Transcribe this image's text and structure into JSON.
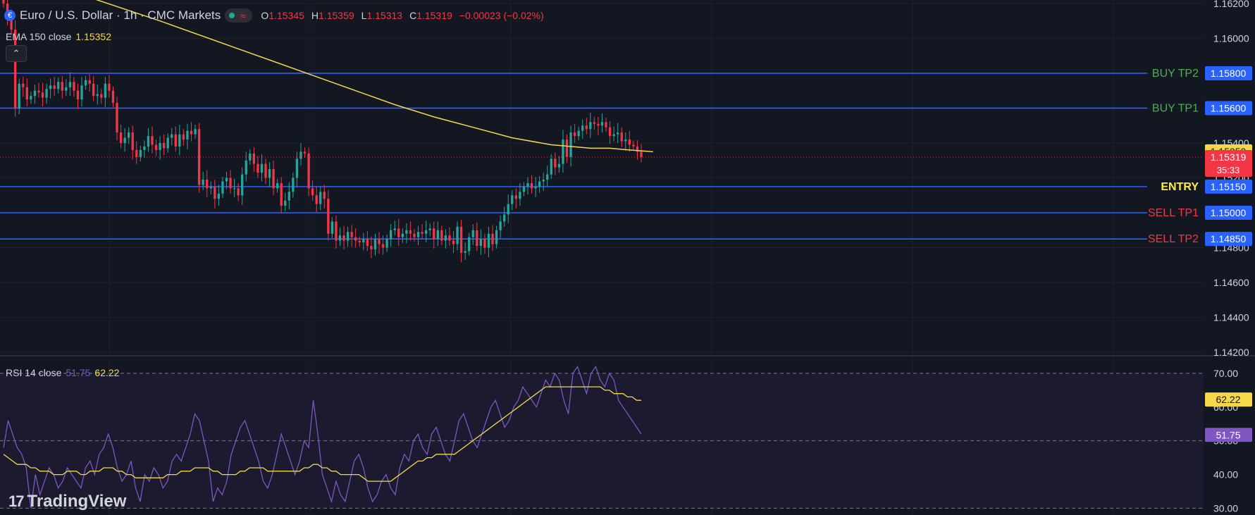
{
  "header": {
    "symbol_icon": "euro-dollar-flag-icon",
    "title": "Euro / U.S. Dollar · 1h · CMC Markets",
    "status_icon": "market-open-dot-icon",
    "wave_icon": "≈",
    "ohlc": {
      "o_label": "O",
      "o": "1.15345",
      "h_label": "H",
      "h": "1.15359",
      "l_label": "L",
      "l": "1.15313",
      "c_label": "C",
      "c": "1.15319",
      "change": "−0.00023 (−0.02%)"
    }
  },
  "ema_legend": {
    "label": "EMA 150 close",
    "value": "1.15352"
  },
  "collapse_button": {
    "icon": "chevron-up-icon",
    "glyph": "⌃"
  },
  "rsi_legend": {
    "label": "RSI 14 close",
    "rsi": "51.75",
    "ma": "62.22"
  },
  "brand": {
    "name": "TradingView",
    "mark": "17"
  },
  "colors": {
    "background": "#131722",
    "up": "#26a69a",
    "down": "#f23645",
    "ema": "#f7d74a",
    "level_line": "#2962ff",
    "rsi": "#7e57c2",
    "rsi_ma": "#f7d74a",
    "buy_text": "#4caf50",
    "entry_text": "#ffeb3b",
    "sell_text": "#f23645"
  },
  "chart_data": [
    {
      "type": "candlestick",
      "title": "Euro / U.S. Dollar · 1h · CMC Markets",
      "ylim": [
        1.1418,
        1.1622
      ],
      "y_ticks": [
        "1.16200",
        "1.16000",
        "1.15800",
        "1.15600",
        "1.15400",
        "1.15200",
        "1.15000",
        "1.14800",
        "1.14600",
        "1.14400",
        "1.14200"
      ],
      "grid": true,
      "close_series": [
        1.162,
        1.1612,
        1.1605,
        1.156,
        1.1574,
        1.1572,
        1.1565,
        1.1567,
        1.157,
        1.1569,
        1.1566,
        1.1571,
        1.1573,
        1.1571,
        1.1575,
        1.157,
        1.1572,
        1.1575,
        1.157,
        1.1565,
        1.1573,
        1.1576,
        1.1574,
        1.1567,
        1.1568,
        1.1566,
        1.1574,
        1.157,
        1.1563,
        1.1546,
        1.154,
        1.1543,
        1.1546,
        1.1536,
        1.1532,
        1.1536,
        1.1538,
        1.1544,
        1.1539,
        1.1536,
        1.154,
        1.1537,
        1.1543,
        1.1545,
        1.1538,
        1.1545,
        1.1542,
        1.1547,
        1.1545,
        1.1548,
        1.1516,
        1.1519,
        1.1514,
        1.1515,
        1.1508,
        1.1511,
        1.1518,
        1.152,
        1.1514,
        1.1514,
        1.151,
        1.1522,
        1.153,
        1.1534,
        1.1528,
        1.1523,
        1.1528,
        1.152,
        1.1525,
        1.1514,
        1.1517,
        1.1504,
        1.1507,
        1.1512,
        1.152,
        1.1531,
        1.1535,
        1.1534,
        1.1514,
        1.151,
        1.1505,
        1.1512,
        1.1508,
        1.1488,
        1.1495,
        1.1484,
        1.1487,
        1.1484,
        1.1489,
        1.1486,
        1.1484,
        1.1483,
        1.1485,
        1.1481,
        1.1479,
        1.1485,
        1.1482,
        1.148,
        1.1485,
        1.149,
        1.1491,
        1.1486,
        1.1488,
        1.149,
        1.1488,
        1.1486,
        1.1489,
        1.1488,
        1.149,
        1.1491,
        1.1485,
        1.149,
        1.1484,
        1.1487,
        1.1484,
        1.1482,
        1.1492,
        1.1477,
        1.1478,
        1.1486,
        1.149,
        1.1481,
        1.1485,
        1.148,
        1.1488,
        1.1482,
        1.149,
        1.1495,
        1.1499,
        1.1505,
        1.151,
        1.1508,
        1.1512,
        1.1515,
        1.1517,
        1.1514,
        1.1515,
        1.1518,
        1.1519,
        1.1522,
        1.1531,
        1.1526,
        1.1528,
        1.1542,
        1.1532,
        1.1546,
        1.1544,
        1.1547,
        1.155,
        1.1548,
        1.1552,
        1.1551,
        1.155,
        1.1552,
        1.1549,
        1.1544,
        1.1545,
        1.1546,
        1.1541,
        1.1542,
        1.1539,
        1.1538,
        1.1535,
        1.1532
      ],
      "ema_150": {
        "label": "EMA 150 close",
        "last": 1.15352,
        "points": [
          [
            0,
            1.1638
          ],
          [
            20,
            1.1625
          ],
          [
            40,
            1.161
          ],
          [
            60,
            1.1594
          ],
          [
            80,
            1.1578
          ],
          [
            100,
            1.1562
          ],
          [
            110,
            1.1555
          ],
          [
            120,
            1.1549
          ],
          [
            130,
            1.1543
          ],
          [
            140,
            1.1539
          ],
          [
            145,
            1.1538
          ],
          [
            150,
            1.1537
          ],
          [
            155,
            1.1537
          ],
          [
            160,
            1.1536
          ],
          [
            166,
            1.1535
          ]
        ]
      },
      "price_lines": [
        {
          "label": "BUY TP2",
          "value": 1.158,
          "price": "1.15800",
          "kind": "buy"
        },
        {
          "label": "BUY TP1",
          "value": 1.156,
          "price": "1.15600",
          "kind": "buy"
        },
        {
          "label": "ENTRY",
          "value": 1.1515,
          "price": "1.15150",
          "kind": "entry"
        },
        {
          "label": "SELL TP1",
          "value": 1.15,
          "price": "1.15000",
          "kind": "sell"
        },
        {
          "label": "SELL TP2",
          "value": 1.1485,
          "price": "1.14850",
          "kind": "sell"
        }
      ],
      "last_price": {
        "value": 1.15319,
        "price": "1.15319",
        "countdown": "35:33"
      },
      "ema_badge": {
        "value": 1.15352,
        "price": "1.15352"
      }
    },
    {
      "type": "line",
      "title": "RSI 14 close",
      "ylim": [
        28,
        75
      ],
      "y_ticks": [
        "70.00",
        "60.00",
        "50.00",
        "40.00",
        "30.00"
      ],
      "bands": [
        70,
        50,
        30
      ],
      "rsi": [
        48,
        56,
        52,
        48,
        46,
        42,
        30,
        40,
        34,
        38,
        42,
        40,
        36,
        38,
        42,
        40,
        38,
        36,
        42,
        44,
        40,
        46,
        48,
        52,
        48,
        42,
        38,
        40,
        44,
        36,
        32,
        40,
        38,
        42,
        40,
        36,
        38,
        44,
        46,
        44,
        48,
        52,
        58,
        56,
        50,
        44,
        32,
        36,
        34,
        38,
        46,
        50,
        54,
        56,
        52,
        48,
        44,
        38,
        36,
        40,
        46,
        52,
        48,
        44,
        40,
        44,
        50,
        48,
        62,
        52,
        40,
        36,
        32,
        38,
        34,
        32,
        38,
        44,
        46,
        42,
        36,
        32,
        34,
        38,
        40,
        36,
        34,
        42,
        46,
        44,
        50,
        52,
        48,
        46,
        52,
        54,
        50,
        46,
        44,
        50,
        56,
        58,
        54,
        50,
        48,
        52,
        56,
        60,
        62,
        58,
        54,
        56,
        60,
        62,
        66,
        64,
        62,
        60,
        64,
        68,
        66,
        70,
        68,
        62,
        58,
        70,
        72,
        68,
        64,
        70,
        72,
        68,
        66,
        70,
        68,
        62,
        60,
        58,
        56,
        54,
        52
      ],
      "rsi_ma": [
        46,
        45,
        44,
        43,
        43,
        43,
        42,
        42,
        41,
        41,
        41,
        40,
        40,
        40,
        41,
        41,
        41,
        40,
        40,
        41,
        41,
        41,
        42,
        42,
        42,
        41,
        41,
        40,
        40,
        39,
        39,
        39,
        39,
        39,
        39,
        39,
        40,
        40,
        40,
        41,
        41,
        41,
        42,
        42,
        42,
        42,
        41,
        41,
        40,
        40,
        40,
        40,
        41,
        41,
        42,
        42,
        42,
        42,
        41,
        41,
        41,
        41,
        41,
        41,
        41,
        41,
        42,
        42,
        43,
        43,
        42,
        42,
        41,
        41,
        40,
        40,
        40,
        40,
        40,
        39,
        38,
        38,
        38,
        38,
        38,
        38,
        39,
        40,
        41,
        42,
        43,
        44,
        44,
        45,
        45,
        46,
        46,
        46,
        46,
        46,
        47,
        48,
        49,
        50,
        51,
        52,
        53,
        54,
        55,
        56,
        57,
        58,
        59,
        60,
        61,
        62,
        63,
        64,
        65,
        66,
        66,
        66,
        66,
        66,
        66,
        66,
        66,
        66,
        66,
        66,
        66,
        66,
        65,
        65,
        64,
        64,
        64,
        63,
        63,
        62,
        62
      ],
      "rsi_last": {
        "value": 51.75,
        "label": "51.75"
      },
      "ma_last": {
        "value": 62.22,
        "label": "62.22"
      }
    }
  ]
}
